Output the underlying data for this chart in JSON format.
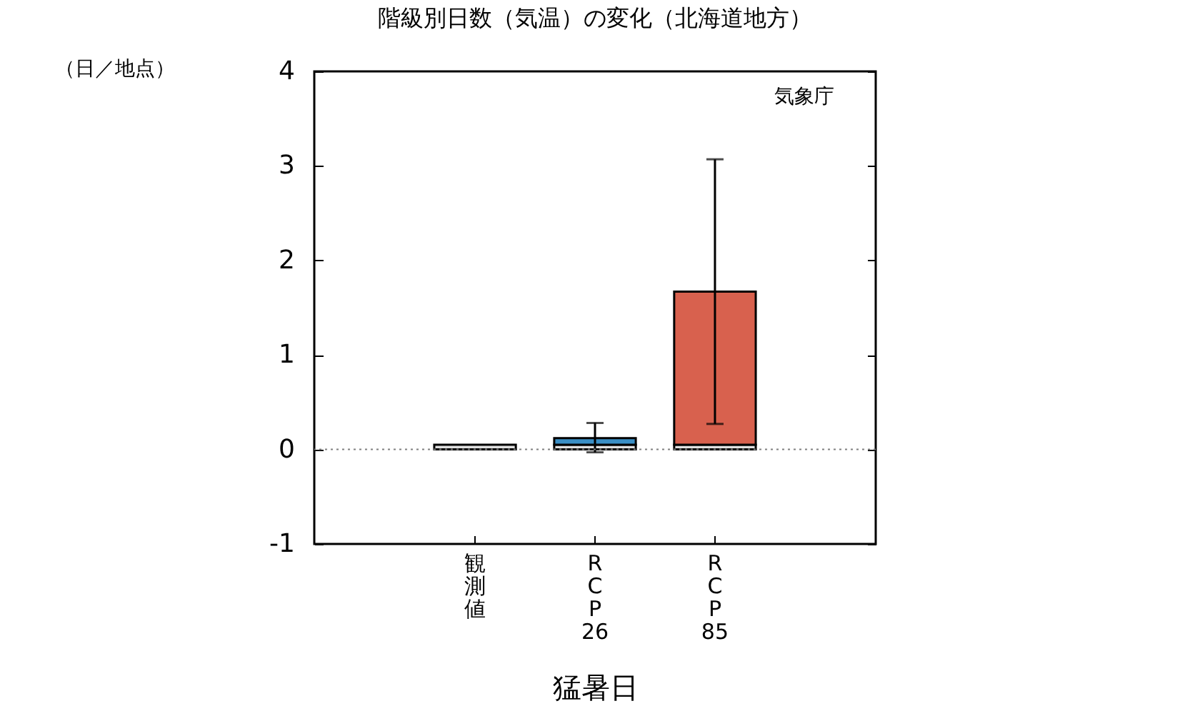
{
  "chart_data": {
    "type": "bar",
    "title": "階級別日数（気温）の変化（北海道地方）",
    "ylabel": "（日／地点）",
    "xlabel": "猛暑日",
    "annotations": [
      "気象庁"
    ],
    "categories": [
      "観測値",
      "RCP26",
      "RCP85"
    ],
    "stacked": true,
    "series": [
      {
        "color": "#e0e0e0",
        "values": [
          0.05,
          0.05,
          0.05
        ]
      },
      {
        "colors": [
          null,
          "#3a8fc6",
          "#d8614e"
        ],
        "values": [
          null,
          0.07,
          1.62
        ],
        "errors": [
          null,
          [
            -0.03,
            0.28
          ],
          [
            0.27,
            3.07
          ]
        ]
      }
    ],
    "ylim": [
      -1,
      4
    ],
    "yticks": [
      -1,
      0,
      1,
      2,
      3,
      4
    ],
    "ref_lines": [
      {
        "axis": "y",
        "value": 0,
        "color": "#808080",
        "line_style": "dotted"
      }
    ]
  }
}
